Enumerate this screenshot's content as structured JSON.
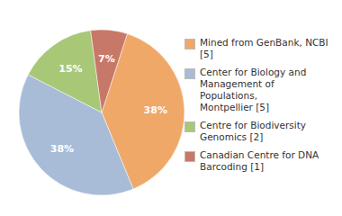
{
  "chart_data": {
    "type": "pie",
    "categories": [
      "Mined from GenBank, NCBI [5]",
      "Center for Biology and\nManagement of Populations,\nMontpellier [5]",
      "Centre for Biodiversity\nGenomics [2]",
      "Canadian Centre for DNA\nBarcoding [1]"
    ],
    "values": [
      38,
      38,
      15,
      7
    ],
    "value_labels": [
      "38%",
      "38%",
      "15%",
      "7%"
    ],
    "colors": [
      "#f0a868",
      "#a8bcd8",
      "#a8c878",
      "#c87868"
    ],
    "data_labels": true,
    "legend": "right"
  }
}
